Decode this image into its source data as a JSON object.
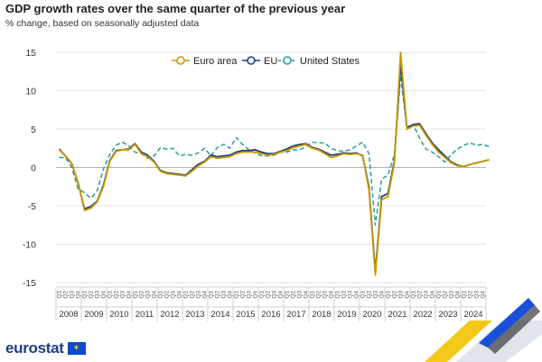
{
  "header": {
    "title": "GDP growth rates over the same quarter of the previous year",
    "subtitle": "% change, based on seasonally adjusted data"
  },
  "footer": {
    "logo_text": "eurostat"
  },
  "colors": {
    "euro_area": "#c79a00",
    "eu": "#1f3f7a",
    "united_states": "#2a9d9a"
  },
  "chart_data": {
    "type": "line",
    "title": "GDP growth rates over the same quarter of the previous year",
    "subtitle": "% change, based on seasonally adjusted data",
    "ylim": [
      -15,
      15
    ],
    "yticks": [
      15,
      10,
      5,
      0,
      -5,
      -10,
      -15
    ],
    "grid": "horizontal",
    "legend_placement": "top-center",
    "quarter_label": "Q",
    "years": [
      "2008",
      "2009",
      "2010",
      "2011",
      "2012",
      "2013",
      "2014",
      "2015",
      "2016",
      "2017",
      "2018",
      "2019",
      "2020",
      "2021",
      "2022",
      "2023",
      "2024"
    ],
    "series": [
      {
        "name": "Euro area",
        "style": "solid",
        "values": [
          2.3,
          1.5,
          0.5,
          -2.0,
          -5.6,
          -5.3,
          -4.5,
          -2.5,
          0.8,
          2.1,
          2.3,
          2.3,
          3.0,
          1.8,
          1.4,
          0.7,
          -0.5,
          -0.8,
          -0.9,
          -1.0,
          -1.1,
          -0.5,
          0.2,
          0.7,
          1.4,
          1.2,
          1.3,
          1.4,
          1.8,
          2.0,
          2.0,
          2.0,
          1.8,
          1.6,
          1.7,
          2.0,
          2.2,
          2.6,
          2.8,
          3.0,
          2.5,
          2.3,
          1.8,
          1.3,
          1.5,
          1.8,
          1.7,
          1.8,
          1.6,
          -3.0,
          -14.0,
          -4.2,
          -3.8,
          0.5,
          15.0,
          5.0,
          5.4,
          5.5,
          4.2,
          3.0,
          2.0,
          1.3,
          0.6,
          0.2,
          0.1,
          0.4,
          0.6,
          0.8,
          1.0
        ]
      },
      {
        "name": "EU",
        "style": "solid",
        "values": [
          2.4,
          1.5,
          0.5,
          -2.0,
          -5.4,
          -5.1,
          -4.4,
          -2.3,
          0.9,
          2.2,
          2.3,
          2.4,
          3.1,
          2.0,
          1.6,
          0.8,
          -0.4,
          -0.7,
          -0.8,
          -0.9,
          -1.0,
          -0.3,
          0.4,
          0.8,
          1.6,
          1.4,
          1.5,
          1.6,
          2.0,
          2.2,
          2.2,
          2.3,
          2.0,
          1.8,
          1.8,
          2.1,
          2.4,
          2.8,
          3.0,
          3.1,
          2.6,
          2.4,
          2.0,
          1.6,
          1.7,
          1.9,
          1.8,
          1.9,
          1.5,
          -2.6,
          -13.6,
          -3.8,
          -3.4,
          0.8,
          13.5,
          5.2,
          5.6,
          5.7,
          4.4,
          3.2,
          2.3,
          1.5,
          0.7,
          0.3,
          0.1,
          0.4,
          0.6,
          0.8,
          1.0
        ]
      },
      {
        "name": "United States",
        "style": "dashed",
        "values": [
          1.3,
          1.3,
          0.0,
          -2.8,
          -3.3,
          -4.0,
          -3.1,
          -0.2,
          1.7,
          2.9,
          3.3,
          2.8,
          2.0,
          1.8,
          1.2,
          1.5,
          2.6,
          2.4,
          2.5,
          1.5,
          1.7,
          1.6,
          1.9,
          2.5,
          1.5,
          2.6,
          3.0,
          2.5,
          3.9,
          3.0,
          2.3,
          1.9,
          1.5,
          1.5,
          1.6,
          2.0,
          2.0,
          2.3,
          2.3,
          2.7,
          3.3,
          3.2,
          3.2,
          2.5,
          2.2,
          2.1,
          2.3,
          2.8,
          3.3,
          1.8,
          -7.5,
          -1.5,
          -1.0,
          1.6,
          12.0,
          5.0,
          5.6,
          3.8,
          2.4,
          2.0,
          1.4,
          0.7,
          1.7,
          2.4,
          2.9,
          3.2,
          2.9,
          3.0,
          2.7
        ]
      }
    ]
  }
}
